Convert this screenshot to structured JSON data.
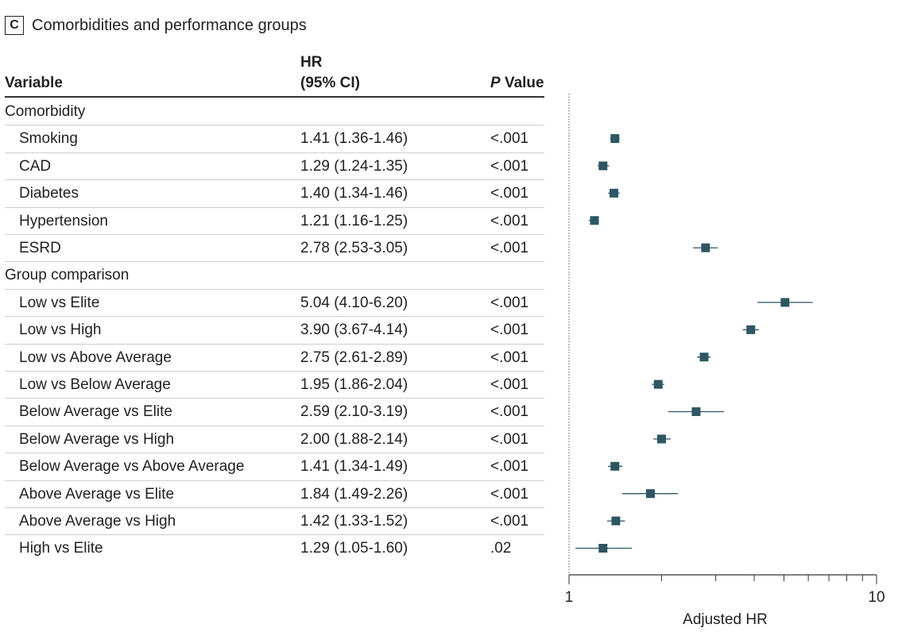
{
  "panel": {
    "letter": "C",
    "title": "Comorbidities and performance groups"
  },
  "columns": {
    "variable": "Variable",
    "hr_line1": "HR",
    "hr_line2": "(95% CI)",
    "p_italic": "P",
    "p_rest": " Value"
  },
  "rows": [
    {
      "type": "group",
      "label": "Comorbidity"
    },
    {
      "type": "item",
      "label": "Smoking",
      "hr_text": "1.41 (1.36-1.46)",
      "p": "<.001"
    },
    {
      "type": "item",
      "label": "CAD",
      "hr_text": "1.29 (1.24-1.35)",
      "p": "<.001"
    },
    {
      "type": "item",
      "label": "Diabetes",
      "hr_text": "1.40 (1.34-1.46)",
      "p": "<.001"
    },
    {
      "type": "item",
      "label": "Hypertension",
      "hr_text": "1.21 (1.16-1.25)",
      "p": "<.001"
    },
    {
      "type": "item",
      "label": "ESRD",
      "hr_text": "2.78 (2.53-3.05)",
      "p": "<.001"
    },
    {
      "type": "group",
      "label": "Group comparison"
    },
    {
      "type": "item",
      "label": "Low vs Elite",
      "hr_text": "5.04 (4.10-6.20)",
      "p": "<.001"
    },
    {
      "type": "item",
      "label": "Low vs High",
      "hr_text": "3.90 (3.67-4.14)",
      "p": "<.001"
    },
    {
      "type": "item",
      "label": "Low vs Above Average",
      "hr_text": "2.75 (2.61-2.89)",
      "p": "<.001"
    },
    {
      "type": "item",
      "label": "Low vs Below Average",
      "hr_text": "1.95 (1.86-2.04)",
      "p": "<.001"
    },
    {
      "type": "item",
      "label": "Below Average vs Elite",
      "hr_text": "2.59 (2.10-3.19)",
      "p": "<.001"
    },
    {
      "type": "item",
      "label": "Below Average vs High",
      "hr_text": "2.00 (1.88-2.14)",
      "p": "<.001"
    },
    {
      "type": "item",
      "label": "Below Average vs Above Average",
      "hr_text": "1.41 (1.34-1.49)",
      "p": "<.001"
    },
    {
      "type": "item",
      "label": "Above Average vs Elite",
      "hr_text": "1.84 (1.49-2.26)",
      "p": "<.001"
    },
    {
      "type": "item",
      "label": "Above Average vs High",
      "hr_text": "1.42 (1.33-1.52)",
      "p": "<.001"
    },
    {
      "type": "item",
      "label": "High vs Elite",
      "hr_text": "1.29 (1.05-1.60)",
      "p": ".02"
    }
  ],
  "chart_data": {
    "type": "scatter",
    "variant": "forest-plot",
    "xlabel": "Adjusted HR",
    "x_scale": "log",
    "xlim": [
      1,
      10
    ],
    "x_ticks_labeled": [
      "1",
      "10"
    ],
    "reference_line": 1,
    "marker_color": "#2e5663",
    "points": [
      {
        "label": "Smoking",
        "hr": 1.41,
        "lo": 1.36,
        "hi": 1.46
      },
      {
        "label": "CAD",
        "hr": 1.29,
        "lo": 1.24,
        "hi": 1.35
      },
      {
        "label": "Diabetes",
        "hr": 1.4,
        "lo": 1.34,
        "hi": 1.46
      },
      {
        "label": "Hypertension",
        "hr": 1.21,
        "lo": 1.16,
        "hi": 1.25
      },
      {
        "label": "ESRD",
        "hr": 2.78,
        "lo": 2.53,
        "hi": 3.05
      },
      {
        "label": "Low vs Elite",
        "hr": 5.04,
        "lo": 4.1,
        "hi": 6.2
      },
      {
        "label": "Low vs High",
        "hr": 3.9,
        "lo": 3.67,
        "hi": 4.14
      },
      {
        "label": "Low vs Above Average",
        "hr": 2.75,
        "lo": 2.61,
        "hi": 2.89
      },
      {
        "label": "Low vs Below Average",
        "hr": 1.95,
        "lo": 1.86,
        "hi": 2.04
      },
      {
        "label": "Below Average vs Elite",
        "hr": 2.59,
        "lo": 2.1,
        "hi": 3.19
      },
      {
        "label": "Below Average vs High",
        "hr": 2.0,
        "lo": 1.88,
        "hi": 2.14
      },
      {
        "label": "Below Average vs Above Average",
        "hr": 1.41,
        "lo": 1.34,
        "hi": 1.49
      },
      {
        "label": "Above Average vs Elite",
        "hr": 1.84,
        "lo": 1.49,
        "hi": 2.26
      },
      {
        "label": "Above Average vs High",
        "hr": 1.42,
        "lo": 1.33,
        "hi": 1.52
      },
      {
        "label": "High vs Elite",
        "hr": 1.29,
        "lo": 1.05,
        "hi": 1.6
      }
    ]
  }
}
